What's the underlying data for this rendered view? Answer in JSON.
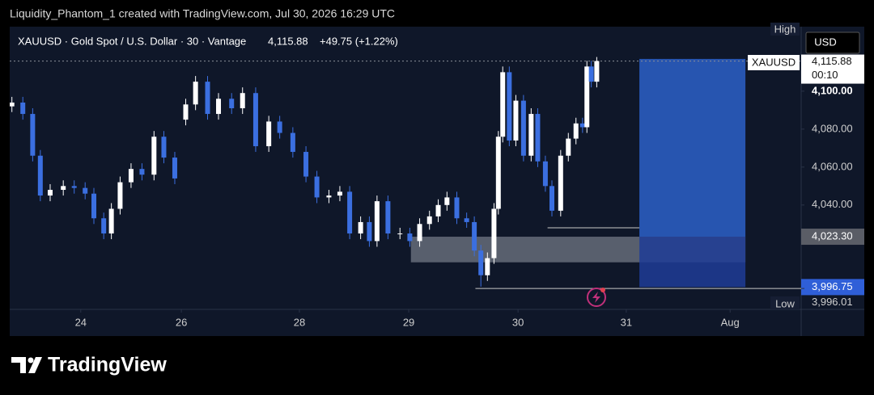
{
  "header": {
    "credit": "Liquidity_Phantom_1 created with TradingView.com, Jul 30, 2026 16:29 UTC"
  },
  "footer": {
    "brand": "TradingView"
  },
  "chart_data": {
    "type": "candlestick",
    "title": "XAUUSD · Gold Spot / U.S. Dollar · 30 · Vantage",
    "last_price": {
      "value": 4115.88,
      "label": "4,115.88"
    },
    "change_label": "+49.75 (+1.22%)",
    "symbol": "XAUUSD",
    "currency": "USD",
    "countdown": "00:10",
    "high_label": "High",
    "low_label": "Low",
    "up_color": "#ffffff",
    "down_color": "#3b6fe0",
    "xlim": [
      -0.65,
      6.59
    ],
    "ylim": [
      3985,
      4134
    ],
    "xticks": [
      {
        "value": 0,
        "label": "24"
      },
      {
        "value": 0.92,
        "label": "26"
      },
      {
        "value": 2.0,
        "label": "28"
      },
      {
        "value": 3.0,
        "label": "29"
      },
      {
        "value": 4.0,
        "label": "30"
      },
      {
        "value": 4.99,
        "label": "31"
      },
      {
        "value": 5.94,
        "label": "Aug"
      }
    ],
    "yticks": [
      {
        "value": 4100,
        "label": "4,100.00"
      },
      {
        "value": 4080,
        "label": "4,080.00"
      },
      {
        "value": 4060,
        "label": "4,060.00"
      },
      {
        "value": 4040,
        "label": "4,040.00"
      }
    ],
    "price_markers": [
      {
        "value": 4023.3,
        "label": "4,023.30",
        "color": "#5a5d66"
      },
      {
        "value": 3996.75,
        "label": "3,996.75",
        "color": "#2f5fd8"
      },
      {
        "value": 3996.01,
        "label": "3,996.01"
      }
    ],
    "x": [
      -0.63,
      -0.53,
      -0.44,
      -0.37,
      -0.28,
      -0.16,
      -0.06,
      0.04,
      0.12,
      0.21,
      0.28,
      0.36,
      0.46,
      0.56,
      0.67,
      0.76,
      0.86,
      0.96,
      1.05,
      1.16,
      1.26,
      1.38,
      1.48,
      1.6,
      1.72,
      1.82,
      1.94,
      2.06,
      2.16,
      2.27,
      2.37,
      2.46,
      2.56,
      2.64,
      2.71,
      2.81,
      2.92,
      3.01,
      3.1,
      3.19,
      3.27,
      3.35,
      3.44,
      3.53,
      3.6,
      3.66,
      3.72,
      3.78,
      3.82,
      3.86,
      3.92,
      3.98,
      4.05,
      4.12,
      4.18,
      4.25,
      4.31,
      4.39,
      4.46,
      4.53,
      4.59,
      4.63,
      4.67,
      4.72
    ],
    "open": [
      4092,
      4094,
      4088,
      4066,
      4045,
      4048,
      4050,
      4049,
      4046,
      4033,
      4025,
      4038,
      4052,
      4059,
      4056,
      4076,
      4065,
      4085,
      4093,
      4105,
      4088,
      4096,
      4091,
      4099,
      4071,
      4084,
      4078,
      4068,
      4055,
      4044,
      4045,
      4047,
      4025,
      4031,
      4021,
      4042,
      4025,
      4025,
      4021,
      4030,
      4034,
      4040,
      4044,
      4033,
      4031,
      4016,
      4003,
      4012,
      4038,
      4076,
      4110,
      4074,
      4095,
      4066,
      4088,
      4063,
      4050,
      4037,
      4066,
      4075,
      4083,
      4081,
      4113,
      4105
    ],
    "high": [
      4097,
      4097,
      4091,
      4069,
      4051,
      4053,
      4053,
      4052,
      4049,
      4036,
      4041,
      4055,
      4062,
      4062,
      4079,
      4079,
      4068,
      4096,
      4108,
      4108,
      4099,
      4099,
      4102,
      4102,
      4087,
      4087,
      4081,
      4071,
      4058,
      4048,
      4050,
      4050,
      4034,
      4034,
      4045,
      4045,
      4028,
      4028,
      4033,
      4037,
      4043,
      4047,
      4047,
      4036,
      4034,
      4019,
      4015,
      4041,
      4079,
      4113,
      4113,
      4098,
      4098,
      4091,
      4091,
      4066,
      4053,
      4069,
      4078,
      4086,
      4086,
      4116,
      4116,
      4118
    ],
    "low": [
      4089,
      4085,
      4063,
      4042,
      4042,
      4045,
      4046,
      4043,
      4030,
      4022,
      4022,
      4035,
      4049,
      4053,
      4053,
      4062,
      4051,
      4082,
      4090,
      4085,
      4085,
      4088,
      4088,
      4068,
      4068,
      4075,
      4065,
      4052,
      4041,
      4041,
      4042,
      4022,
      4022,
      4018,
      4018,
      4022,
      4022,
      4018,
      4018,
      4027,
      4031,
      4037,
      4030,
      4028,
      4013,
      3997,
      4000,
      4009,
      4035,
      4073,
      4071,
      4071,
      4063,
      4063,
      4060,
      4047,
      4034,
      4034,
      4063,
      4072,
      4078,
      4078,
      4102,
      4102
    ],
    "close": [
      4094,
      4088,
      4066,
      4045,
      4048,
      4050,
      4049,
      4046,
      4033,
      4025,
      4038,
      4052,
      4059,
      4056,
      4076,
      4065,
      4054,
      4093,
      4105,
      4088,
      4096,
      4091,
      4099,
      4071,
      4084,
      4078,
      4068,
      4055,
      4044,
      4045,
      4047,
      4025,
      4031,
      4021,
      4042,
      4025,
      4025,
      4021,
      4030,
      4034,
      4040,
      4044,
      4033,
      4031,
      4016,
      4003,
      4012,
      4038,
      4076,
      4110,
      4074,
      4095,
      4066,
      4088,
      4063,
      4050,
      4037,
      4066,
      4075,
      4083,
      4081,
      4113,
      4105,
      4115.88
    ],
    "position": {
      "x": [
        5.11,
        6.08
      ],
      "target": 4117,
      "entry": 4023.3,
      "stop": 3996.75
    },
    "zone": {
      "x": [
        3.02,
        6.08
      ],
      "top": 4023.3,
      "bottom": 4009.8
    },
    "levels": [
      {
        "value": 4028,
        "x": [
          4.27,
          5.11
        ]
      },
      {
        "value": 3996.01,
        "x": [
          3.61,
          6.59
        ]
      }
    ]
  }
}
